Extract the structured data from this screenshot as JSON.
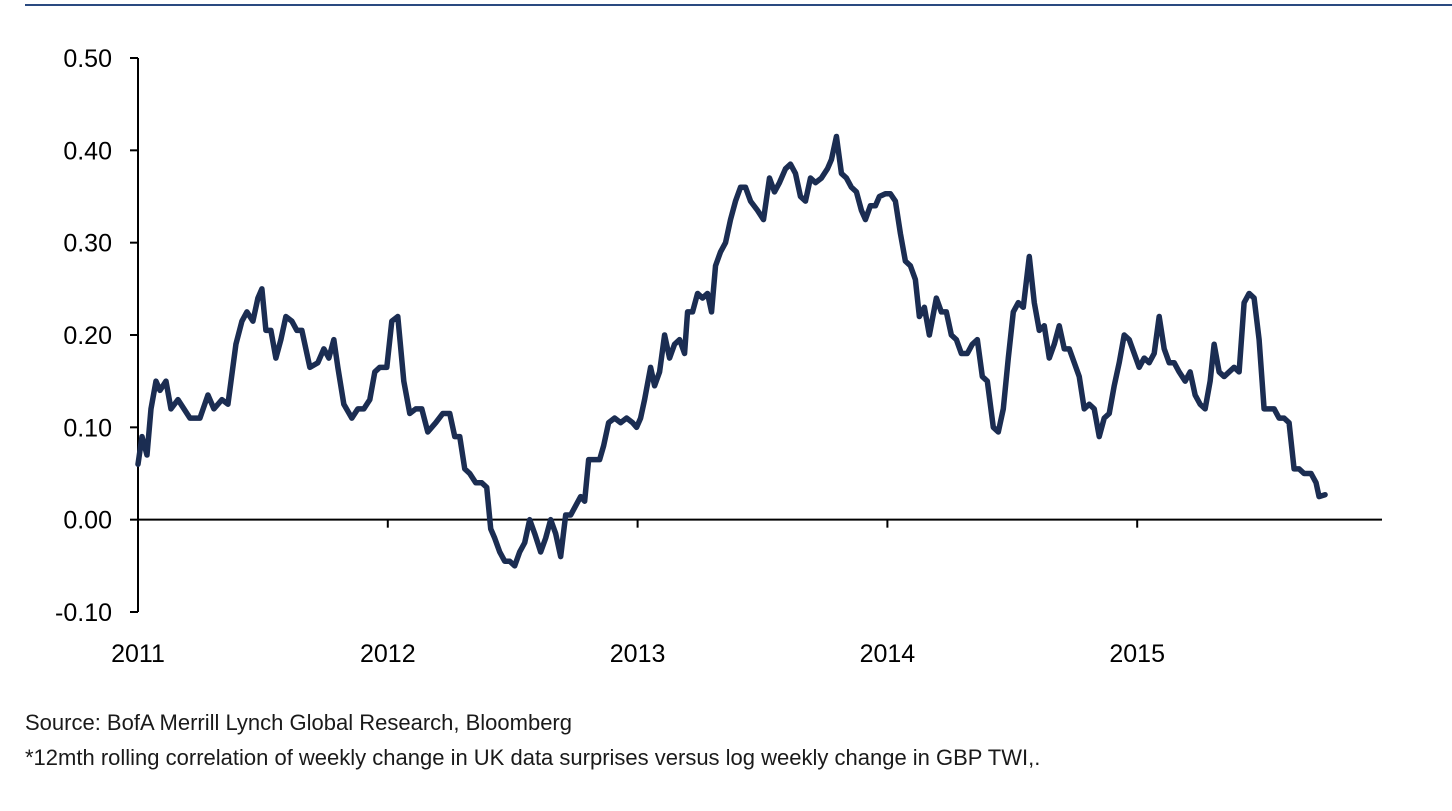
{
  "chart_data": {
    "type": "line",
    "source": "Source: BofA Merrill Lynch Global Research, Bloomberg",
    "note": "*12mth rolling correlation of weekly change in UK data surprises versus log weekly change in GBP TWI,.",
    "xlim": [
      2011,
      2015.98
    ],
    "xticks": [
      2011,
      2012,
      2013,
      2014,
      2015
    ],
    "ylim": [
      -0.1,
      0.5
    ],
    "yticks": [
      {
        "value": -0.1,
        "label": "-0.10"
      },
      {
        "value": 0,
        "label": "0.00"
      },
      {
        "value": 0.1,
        "label": "0.10"
      },
      {
        "value": 0.2,
        "label": "0.20"
      },
      {
        "value": 0.3,
        "label": "0.30"
      },
      {
        "value": 0.4,
        "label": "0.40"
      },
      {
        "value": 0.5,
        "label": "0.50"
      }
    ],
    "x": [
      2011.0,
      2011.016,
      2011.036,
      2011.052,
      2011.072,
      2011.088,
      2011.112,
      2011.132,
      2011.16,
      2011.208,
      2011.248,
      2011.28,
      2011.304,
      2011.336,
      2011.36,
      2011.392,
      2011.416,
      2011.436,
      2011.46,
      2011.48,
      2011.496,
      2011.512,
      2011.532,
      2011.552,
      2011.572,
      2011.592,
      2011.616,
      2011.636,
      2011.656,
      2011.688,
      2011.72,
      2011.744,
      2011.764,
      2011.784,
      2011.8,
      2011.824,
      2011.856,
      2011.88,
      2011.904,
      2011.928,
      2011.948,
      2011.968,
      2011.996,
      2012.016,
      2012.04,
      2012.064,
      2012.088,
      2012.112,
      2012.136,
      2012.16,
      2012.192,
      2012.22,
      2012.248,
      2012.268,
      2012.288,
      2012.308,
      2012.328,
      2012.352,
      2012.376,
      2012.396,
      2012.412,
      2012.428,
      2012.448,
      2012.468,
      2012.488,
      2012.508,
      2012.528,
      2012.548,
      2012.568,
      2012.588,
      2012.612,
      2012.632,
      2012.652,
      2012.672,
      2012.692,
      2012.712,
      2012.732,
      2012.752,
      2012.772,
      2012.788,
      2012.804,
      2012.824,
      2012.848,
      2012.864,
      2012.884,
      2012.908,
      2012.932,
      2012.956,
      2012.98,
      2012.996,
      2013.012,
      2013.028,
      2013.052,
      2013.068,
      2013.088,
      2013.108,
      2013.128,
      2013.148,
      2013.168,
      2013.188,
      2013.2,
      2013.22,
      2013.24,
      2013.26,
      2013.28,
      2013.296,
      2013.312,
      2013.332,
      2013.352,
      2013.372,
      2013.392,
      2013.412,
      2013.432,
      2013.452,
      2013.48,
      2013.504,
      2013.528,
      2013.548,
      2013.568,
      2013.592,
      2013.612,
      2013.632,
      2013.652,
      2013.672,
      2013.692,
      2013.712,
      2013.736,
      2013.76,
      2013.776,
      2013.796,
      2013.816,
      2013.836,
      2013.856,
      2013.876,
      2013.896,
      2013.912,
      2013.932,
      2013.952,
      2013.968,
      2013.992,
      2014.012,
      2014.032,
      2014.052,
      2014.072,
      2014.092,
      2014.112,
      2014.128,
      2014.148,
      2014.168,
      2014.196,
      2014.216,
      2014.236,
      2014.256,
      2014.276,
      2014.296,
      2014.32,
      2014.34,
      2014.36,
      2014.38,
      2014.4,
      2014.424,
      2014.444,
      2014.464,
      2014.484,
      2014.504,
      2014.524,
      2014.544,
      2014.568,
      2014.588,
      2014.608,
      2014.628,
      2014.648,
      2014.668,
      2014.688,
      2014.708,
      2014.728,
      2014.748,
      2014.768,
      2014.788,
      2014.808,
      2014.828,
      2014.848,
      2014.868,
      2014.888,
      2014.908,
      2014.928,
      2014.948,
      2014.968,
      2014.988,
      2015.008,
      2015.028,
      2015.048,
      2015.068,
      2015.088,
      2015.108,
      2015.128,
      2015.148,
      2015.168,
      2015.192,
      2015.212,
      2015.232,
      2015.252,
      2015.272,
      2015.292,
      2015.308,
      2015.328,
      2015.348,
      2015.368,
      2015.388,
      2015.408,
      2015.428,
      2015.448,
      2015.468,
      2015.488,
      2015.508,
      2015.528,
      2015.548,
      2015.568,
      2015.588,
      2015.608,
      2015.628,
      2015.648,
      2015.668,
      2015.696,
      2015.716,
      2015.728,
      2015.752
    ],
    "series": [
      {
        "color": "#1b2d52",
        "values": [
          0.06,
          0.09,
          0.07,
          0.12,
          0.15,
          0.14,
          0.15,
          0.12,
          0.13,
          0.11,
          0.11,
          0.135,
          0.12,
          0.13,
          0.125,
          0.19,
          0.215,
          0.225,
          0.215,
          0.24,
          0.25,
          0.205,
          0.205,
          0.175,
          0.195,
          0.22,
          0.215,
          0.205,
          0.205,
          0.165,
          0.17,
          0.185,
          0.175,
          0.195,
          0.165,
          0.125,
          0.11,
          0.12,
          0.12,
          0.13,
          0.16,
          0.165,
          0.165,
          0.215,
          0.22,
          0.15,
          0.115,
          0.12,
          0.12,
          0.095,
          0.105,
          0.115,
          0.115,
          0.09,
          0.09,
          0.055,
          0.05,
          0.04,
          0.04,
          0.035,
          -0.01,
          -0.02,
          -0.035,
          -0.045,
          -0.045,
          -0.05,
          -0.035,
          -0.025,
          0.0,
          -0.015,
          -0.035,
          -0.02,
          0.0,
          -0.015,
          -0.04,
          0.005,
          0.005,
          0.015,
          0.025,
          0.02,
          0.065,
          0.065,
          0.065,
          0.08,
          0.105,
          0.11,
          0.105,
          0.11,
          0.105,
          0.1,
          0.11,
          0.13,
          0.165,
          0.145,
          0.16,
          0.2,
          0.175,
          0.19,
          0.195,
          0.18,
          0.225,
          0.225,
          0.245,
          0.24,
          0.245,
          0.225,
          0.275,
          0.29,
          0.3,
          0.325,
          0.345,
          0.36,
          0.36,
          0.345,
          0.335,
          0.325,
          0.37,
          0.355,
          0.365,
          0.38,
          0.385,
          0.375,
          0.35,
          0.345,
          0.37,
          0.365,
          0.37,
          0.38,
          0.39,
          0.415,
          0.375,
          0.37,
          0.36,
          0.355,
          0.335,
          0.325,
          0.34,
          0.34,
          0.35,
          0.353,
          0.353,
          0.345,
          0.31,
          0.28,
          0.275,
          0.26,
          0.22,
          0.23,
          0.2,
          0.24,
          0.225,
          0.225,
          0.2,
          0.195,
          0.18,
          0.18,
          0.19,
          0.195,
          0.155,
          0.15,
          0.1,
          0.095,
          0.12,
          0.175,
          0.225,
          0.235,
          0.23,
          0.285,
          0.235,
          0.205,
          0.21,
          0.175,
          0.19,
          0.21,
          0.185,
          0.185,
          0.17,
          0.155,
          0.12,
          0.125,
          0.12,
          0.09,
          0.11,
          0.115,
          0.145,
          0.17,
          0.2,
          0.195,
          0.18,
          0.165,
          0.175,
          0.17,
          0.18,
          0.22,
          0.185,
          0.17,
          0.17,
          0.16,
          0.15,
          0.16,
          0.135,
          0.125,
          0.12,
          0.15,
          0.19,
          0.16,
          0.155,
          0.16,
          0.165,
          0.16,
          0.235,
          0.245,
          0.24,
          0.195,
          0.12,
          0.12,
          0.12,
          0.11,
          0.11,
          0.105,
          0.055,
          0.055,
          0.05,
          0.05,
          0.04,
          0.025,
          0.027
        ]
      }
    ]
  }
}
